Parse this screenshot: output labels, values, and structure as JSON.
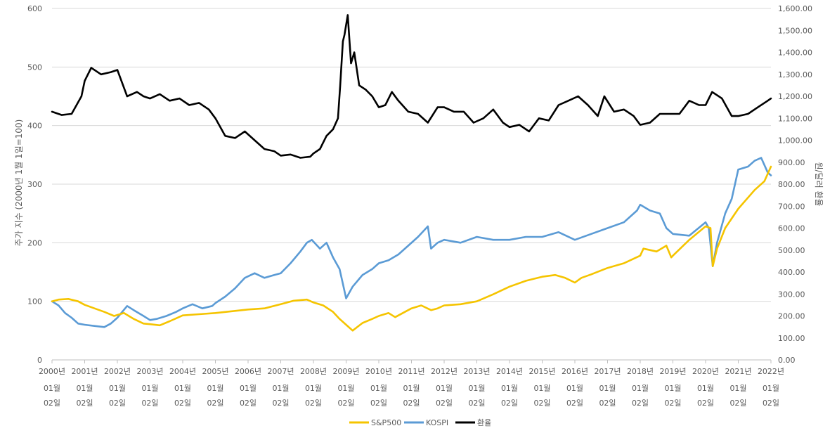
{
  "chart_data": {
    "type": "line",
    "left_axis": {
      "title": "주가 지수 (2000년 1월 1일=100)",
      "ylim": [
        0,
        600
      ],
      "ticks": [
        "0",
        "100",
        "200",
        "300",
        "400",
        "500",
        "600"
      ]
    },
    "right_axis": {
      "title": "원/달러 환율",
      "ylim": [
        0,
        1600
      ],
      "ticks": [
        "0.00",
        "100.00",
        "200.00",
        "300.00",
        "400.00",
        "500.00",
        "600.00",
        "700.00",
        "800.00",
        "900.00",
        "1,000.00",
        "1,100.00",
        "1,200.00",
        "1,300.00",
        "1,400.00",
        "1,500.00",
        "1,600.00"
      ]
    },
    "x_axis": {
      "categories": [
        {
          "year": "2000년",
          "month": "01월",
          "day": "02일"
        },
        {
          "year": "2001년",
          "month": "01월",
          "day": "02일"
        },
        {
          "year": "2002년",
          "month": "01월",
          "day": "02일"
        },
        {
          "year": "2003년",
          "month": "01월",
          "day": "02일"
        },
        {
          "year": "2004년",
          "month": "01월",
          "day": "02일"
        },
        {
          "year": "2005년",
          "month": "01월",
          "day": "02일"
        },
        {
          "year": "2006년",
          "month": "01월",
          "day": "02일"
        },
        {
          "year": "2007년",
          "month": "01월",
          "day": "02일"
        },
        {
          "year": "2008년",
          "month": "01월",
          "day": "02일"
        },
        {
          "year": "2009년",
          "month": "01월",
          "day": "02일"
        },
        {
          "year": "2010년",
          "month": "01월",
          "day": "02일"
        },
        {
          "year": "2011년",
          "month": "01월",
          "day": "02일"
        },
        {
          "year": "2012년",
          "month": "01월",
          "day": "02일"
        },
        {
          "year": "2013년",
          "month": "01월",
          "day": "02일"
        },
        {
          "year": "2014년",
          "month": "01월",
          "day": "02일"
        },
        {
          "year": "2015년",
          "month": "01월",
          "day": "02일"
        },
        {
          "year": "2016년",
          "month": "01월",
          "day": "02일"
        },
        {
          "year": "2017년",
          "month": "01월",
          "day": "02일"
        },
        {
          "year": "2018년",
          "month": "01월",
          "day": "02일"
        },
        {
          "year": "2019년",
          "month": "01월",
          "day": "02일"
        },
        {
          "year": "2020년",
          "month": "01월",
          "day": "02일"
        },
        {
          "year": "2021년",
          "month": "01월",
          "day": "02일"
        },
        {
          "year": "2022년",
          "month": "01월",
          "day": "02일"
        }
      ]
    },
    "grid": true,
    "legend_position": "bottom",
    "series": [
      {
        "name": "S&P500",
        "color": "#F5C400",
        "axis": "left",
        "x": [
          2000,
          2000.2,
          2000.5,
          2000.8,
          2001.0,
          2001.3,
          2001.6,
          2001.9,
          2002.2,
          2002.5,
          2002.8,
          2003.0,
          2003.3,
          2003.6,
          2004.0,
          2004.5,
          2005.0,
          2005.5,
          2006.0,
          2006.5,
          2007.0,
          2007.4,
          2007.8,
          2008.0,
          2008.3,
          2008.6,
          2008.8,
          2009.0,
          2009.2,
          2009.5,
          2009.8,
          2010.0,
          2010.3,
          2010.5,
          2010.8,
          2011.0,
          2011.3,
          2011.6,
          2011.8,
          2012.0,
          2012.5,
          2013.0,
          2013.5,
          2014.0,
          2014.5,
          2015.0,
          2015.4,
          2015.7,
          2016.0,
          2016.2,
          2016.5,
          2017.0,
          2017.5,
          2018.0,
          2018.1,
          2018.5,
          2018.8,
          2018.95,
          2019.0,
          2019.5,
          2020.0,
          2020.15,
          2020.22,
          2020.35,
          2020.6,
          2021.0,
          2021.5,
          2021.8,
          2022.0
        ],
        "values": [
          100,
          103,
          104,
          100,
          94,
          88,
          82,
          75,
          80,
          70,
          62,
          61,
          59,
          66,
          76,
          78,
          80,
          83,
          86,
          88,
          95,
          101,
          103,
          98,
          93,
          82,
          70,
          60,
          50,
          63,
          70,
          75,
          80,
          73,
          82,
          88,
          93,
          85,
          88,
          93,
          95,
          100,
          112,
          125,
          135,
          142,
          145,
          140,
          132,
          140,
          146,
          157,
          165,
          178,
          190,
          185,
          195,
          175,
          178,
          205,
          228,
          225,
          160,
          190,
          225,
          258,
          290,
          305,
          330
        ]
      },
      {
        "name": "KOSPI",
        "color": "#5B9BD5",
        "axis": "left",
        "x": [
          2000,
          2000.2,
          2000.4,
          2000.6,
          2000.8,
          2001.0,
          2001.3,
          2001.6,
          2001.8,
          2002.0,
          2002.3,
          2002.5,
          2002.8,
          2003.0,
          2003.2,
          2003.5,
          2003.8,
          2004.0,
          2004.3,
          2004.6,
          2004.9,
          2005.0,
          2005.3,
          2005.6,
          2005.9,
          2006.2,
          2006.5,
          2006.8,
          2007.0,
          2007.3,
          2007.6,
          2007.8,
          2007.95,
          2008.2,
          2008.4,
          2008.6,
          2008.8,
          2008.9,
          2009.0,
          2009.2,
          2009.5,
          2009.8,
          2010.0,
          2010.3,
          2010.6,
          2010.9,
          2011.2,
          2011.5,
          2011.6,
          2011.8,
          2012.0,
          2012.5,
          2013.0,
          2013.5,
          2014.0,
          2014.5,
          2015.0,
          2015.5,
          2016.0,
          2016.5,
          2017.0,
          2017.5,
          2017.9,
          2018.0,
          2018.3,
          2018.6,
          2018.8,
          2019.0,
          2019.5,
          2020.0,
          2020.1,
          2020.22,
          2020.35,
          2020.6,
          2020.8,
          2021.0,
          2021.3,
          2021.5,
          2021.7,
          2021.9,
          2022.0
        ],
        "values": [
          100,
          93,
          80,
          72,
          62,
          60,
          58,
          56,
          62,
          72,
          92,
          85,
          75,
          68,
          70,
          75,
          82,
          88,
          95,
          88,
          92,
          97,
          108,
          122,
          140,
          148,
          140,
          145,
          148,
          165,
          185,
          200,
          205,
          190,
          200,
          175,
          155,
          130,
          105,
          125,
          145,
          155,
          165,
          170,
          180,
          195,
          210,
          228,
          190,
          200,
          205,
          200,
          210,
          205,
          205,
          210,
          210,
          218,
          205,
          215,
          225,
          235,
          255,
          265,
          255,
          250,
          225,
          215,
          212,
          235,
          225,
          160,
          200,
          250,
          275,
          325,
          330,
          340,
          345,
          320,
          315
        ]
      },
      {
        "name": "환율",
        "color": "#000000",
        "axis": "right",
        "x": [
          2000,
          2000.3,
          2000.6,
          2000.9,
          2001.0,
          2001.2,
          2001.5,
          2001.8,
          2002.0,
          2002.3,
          2002.6,
          2002.8,
          2003.0,
          2003.3,
          2003.6,
          2003.9,
          2004.2,
          2004.5,
          2004.8,
          2005.0,
          2005.3,
          2005.6,
          2005.9,
          2006.2,
          2006.5,
          2006.8,
          2007.0,
          2007.3,
          2007.6,
          2007.9,
          2008.0,
          2008.2,
          2008.4,
          2008.6,
          2008.75,
          2008.82,
          2008.9,
          2008.95,
          2009.05,
          2009.15,
          2009.25,
          2009.4,
          2009.6,
          2009.8,
          2010.0,
          2010.2,
          2010.4,
          2010.6,
          2010.9,
          2011.2,
          2011.5,
          2011.8,
          2012.0,
          2012.3,
          2012.6,
          2012.9,
          2013.2,
          2013.5,
          2013.8,
          2014.0,
          2014.3,
          2014.6,
          2014.9,
          2015.2,
          2015.5,
          2015.8,
          2016.1,
          2016.4,
          2016.7,
          2016.9,
          2017.2,
          2017.5,
          2017.8,
          2018.0,
          2018.3,
          2018.6,
          2018.9,
          2019.2,
          2019.5,
          2019.8,
          2020.0,
          2020.2,
          2020.5,
          2020.8,
          2021.0,
          2021.3,
          2021.6,
          2021.9,
          2022.0
        ],
        "values": [
          1130,
          1115,
          1120,
          1200,
          1270,
          1330,
          1300,
          1310,
          1320,
          1200,
          1220,
          1200,
          1190,
          1210,
          1180,
          1190,
          1160,
          1170,
          1140,
          1100,
          1020,
          1010,
          1040,
          1000,
          960,
          950,
          930,
          935,
          920,
          925,
          940,
          960,
          1020,
          1050,
          1100,
          1250,
          1450,
          1480,
          1570,
          1350,
          1400,
          1250,
          1230,
          1200,
          1150,
          1160,
          1220,
          1180,
          1130,
          1120,
          1080,
          1150,
          1150,
          1130,
          1130,
          1080,
          1100,
          1140,
          1080,
          1060,
          1070,
          1040,
          1100,
          1090,
          1160,
          1180,
          1200,
          1160,
          1110,
          1200,
          1130,
          1140,
          1110,
          1070,
          1080,
          1120,
          1120,
          1120,
          1180,
          1160,
          1160,
          1220,
          1190,
          1110,
          1110,
          1120,
          1150,
          1180,
          1190
        ]
      }
    ]
  }
}
